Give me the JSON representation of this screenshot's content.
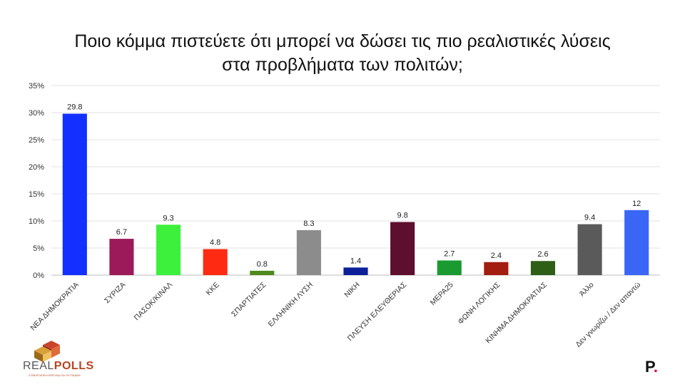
{
  "chart_data": {
    "type": "bar",
    "title_lines": [
      "Ποιο κόμμα πιστεύετε ότι μπορεί να δώσει τις πιο ρεαλιστικές λύσεις",
      "στα προβλήματα των πολιτών;"
    ],
    "categories": [
      "ΝΕΑ ΔΗΜΟΚΡΑΤΙΑ",
      "ΣΥΡΙΖΑ",
      "ΠΑΣΟΚ/ΚΙΝΑΛ",
      "ΚΚΕ",
      "ΣΠΑΡΤΙΑΤΕΣ",
      "ΕΛΛΗΝΙΚΗ ΛΥΣΗ",
      "ΝΙΚΗ",
      "ΠΛΕΥΣΗ ΕΛΕΥΘΕΡΙΑΣ",
      "ΜΕΡΑ25",
      "ΦΩΝΗ ΛΟΓΙΚΗΣ",
      "ΚΙΝΗΜΑ ΔΗΜΟΚΡΑΤΙΑΣ",
      "Άλλο",
      "Δεν γνωρίζω / Δεν απαντώ"
    ],
    "values": [
      29.8,
      6.7,
      9.3,
      4.8,
      0.8,
      8.3,
      1.4,
      9.8,
      2.7,
      2.4,
      2.6,
      9.4,
      12
    ],
    "value_labels": [
      "29.8",
      "6.7",
      "9.3",
      "4.8",
      "0.8",
      "8.3",
      "1.4",
      "9.8",
      "2.7",
      "2.4",
      "2.6",
      "9.4",
      "12"
    ],
    "colors": [
      "#1230ff",
      "#9b1b5a",
      "#3cf03c",
      "#ff2a12",
      "#4e8a1c",
      "#8c8c8c",
      "#0b1f9a",
      "#5e0e2e",
      "#1a9a30",
      "#a31d10",
      "#2e5e18",
      "#5a5a5a",
      "#3a66f6"
    ],
    "ylim": [
      0,
      35
    ],
    "y_ticks": [
      0,
      5,
      10,
      15,
      20,
      25,
      30,
      35
    ],
    "y_tick_labels": [
      "0%",
      "5%",
      "10%",
      "15%",
      "20%",
      "25%",
      "30%",
      "35%"
    ],
    "grid": true,
    "xlabel": "",
    "ylabel": ""
  },
  "logos": {
    "left_text_main": "REAL",
    "left_text_bold": "POLLS",
    "left_tagline": "ΣΥΝΕΡΓΑΤΙΚΗ ΕΡΕΥΝΑ ΓΙΑ ΤΗ ΓΝΩΜΗ",
    "right_letter": "P",
    "right_dot": "."
  }
}
